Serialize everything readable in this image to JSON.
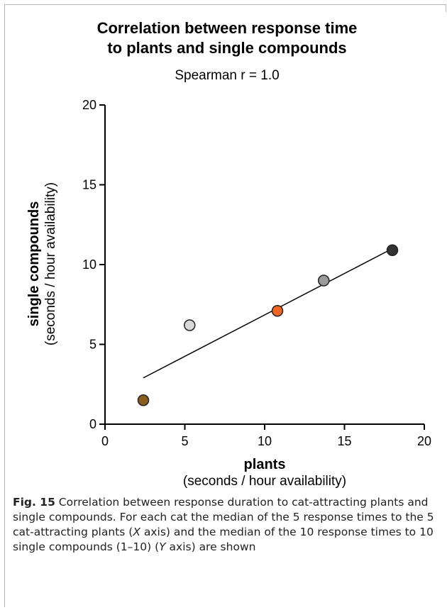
{
  "chart_data": {
    "type": "scatter",
    "title_line1": "Correlation between response time",
    "title_line2": "to plants and single compounds",
    "subtitle": "Spearman r = 1.0",
    "xlabel": "plants",
    "xlabel_sub": "(seconds / hour availability)",
    "ylabel": "single compounds",
    "ylabel_sub": "(seconds / hour availability)",
    "xlim": [
      0,
      20
    ],
    "ylim": [
      0,
      20
    ],
    "xticks": [
      "0",
      "5",
      "10",
      "15",
      "20"
    ],
    "yticks": [
      "0",
      "5",
      "10",
      "15",
      "20"
    ],
    "grid": false,
    "points": [
      {
        "x": 2.4,
        "y": 1.5,
        "color": "#8B5E20"
      },
      {
        "x": 5.3,
        "y": 6.2,
        "color": "#D8D8D8"
      },
      {
        "x": 10.8,
        "y": 7.1,
        "color": "#F26522"
      },
      {
        "x": 13.7,
        "y": 9.0,
        "color": "#9A9A9A"
      },
      {
        "x": 18.0,
        "y": 10.9,
        "color": "#333333"
      }
    ],
    "fit_line": {
      "x": [
        2.4,
        18.0
      ],
      "y": [
        2.9,
        11.0
      ]
    }
  },
  "caption": {
    "label": "Fig. 15",
    "text1": " Correlation between response duration to cat-attracting plants and single compounds. For each cat the median of the 5 response times to the 5 cat-attracting plants (",
    "x_it": "X",
    "text2": " axis) and the median of the 10 response times to 10 single compounds (1–10) (",
    "y_it": "Y",
    "text3": " axis) are shown"
  }
}
